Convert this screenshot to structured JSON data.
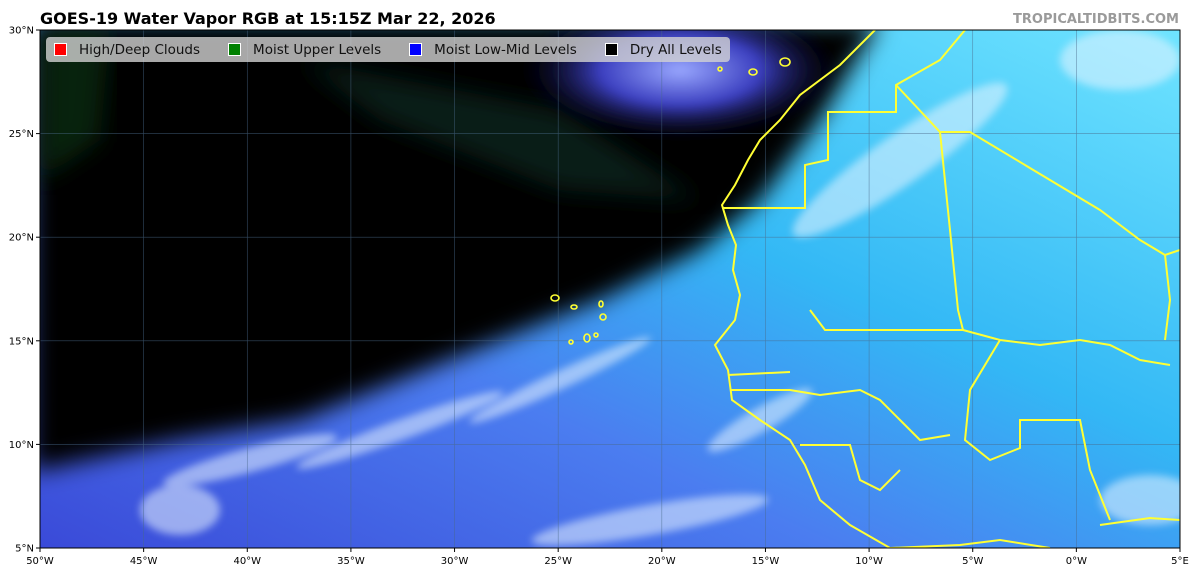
{
  "title": "GOES-19 Water Vapor RGB at 15:15Z Mar 22, 2026",
  "watermark": "TROPICALTIDBITS.COM",
  "legend": [
    {
      "label": "High/Deep Clouds",
      "color": "#ff0000"
    },
    {
      "label": "Moist Upper Levels",
      "color": "#008000"
    },
    {
      "label": "Moist Low-Mid Levels",
      "color": "#0000ff"
    },
    {
      "label": "Dry All Levels",
      "color": "#000000"
    }
  ],
  "axes": {
    "lon_labels": [
      "50°W",
      "45°W",
      "40°W",
      "35°W",
      "30°W",
      "25°W",
      "20°W",
      "15°W",
      "10°W",
      "5°W",
      "0°W",
      "5°E"
    ],
    "lat_labels": [
      "30°N",
      "25°N",
      "20°N",
      "15°N",
      "10°N",
      "5°N"
    ]
  },
  "colors": {
    "boundaries": "#ffff33",
    "grid": "#4a6a8a"
  }
}
